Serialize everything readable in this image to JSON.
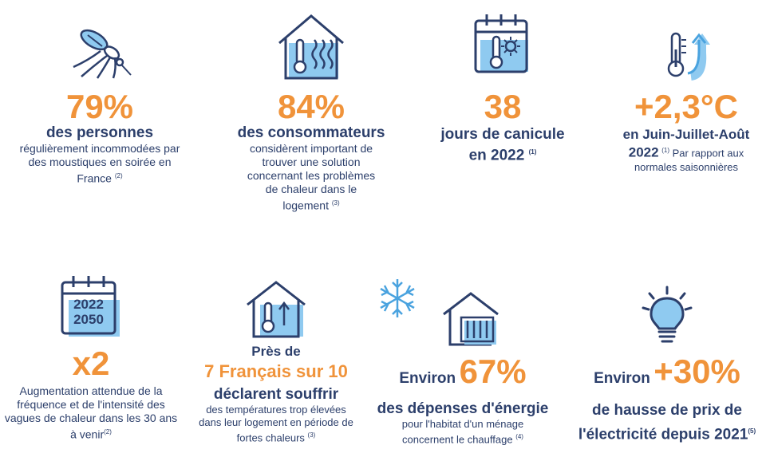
{
  "stats": [
    {
      "big": "79%",
      "lead": "des personnes",
      "sub": "régulièrement incommodées par des moustiques en soirée en France",
      "note": "(2)"
    },
    {
      "big": "84%",
      "lead": "des consommateurs",
      "sub": "considèrent important de trouver une solution concernant les problèmes de chaleur dans le logement",
      "note": "(3)"
    },
    {
      "big": "38",
      "lead1": "jours de canicule",
      "lead2": "en 2022",
      "note": "(1)"
    },
    {
      "big": "+2,3°C",
      "lead1": "en Juin-Juillet-Août",
      "lead2": "2022",
      "note": "(1)",
      "sub": "Par rapport aux normales saisonnières"
    },
    {
      "big": "x2",
      "sub": "Augmentation attendue de la fréquence et de l'intensité des vagues de chaleur dans les 30 ans à venir",
      "note": "(2)",
      "icon_text1": "2022",
      "icon_text2": "2050"
    },
    {
      "pre": "Près de",
      "big": "7 Français sur 10",
      "lead": "déclarent souffrir",
      "sub": "des températures trop élevées dans leur logement en période de fortes chaleurs",
      "note": "(3)"
    },
    {
      "prefix": "Environ",
      "big": "67%",
      "lead": "des dépenses d'énergie",
      "sub": "pour l'habitat d'un ménage concernent le chauffage",
      "note": "(4)"
    },
    {
      "prefix": "Environ",
      "big": "+30%",
      "lead1": "de hausse de prix de",
      "lead2": "l'électricité depuis 2021",
      "note": "(5)"
    }
  ],
  "colors": {
    "navy": "#2c3f6b",
    "orange": "#f0933a",
    "blue": "#4aa3df",
    "lightblue": "#8fcaf0"
  },
  "icons": [
    "mosquito-icon",
    "hot-house-icon",
    "calendar-thermometer-icon",
    "thermometer-up-icon",
    "calendar-years-icon",
    "house-thermometer-icon",
    "snowflake-icon",
    "house-radiator-icon",
    "lightbulb-icon"
  ]
}
